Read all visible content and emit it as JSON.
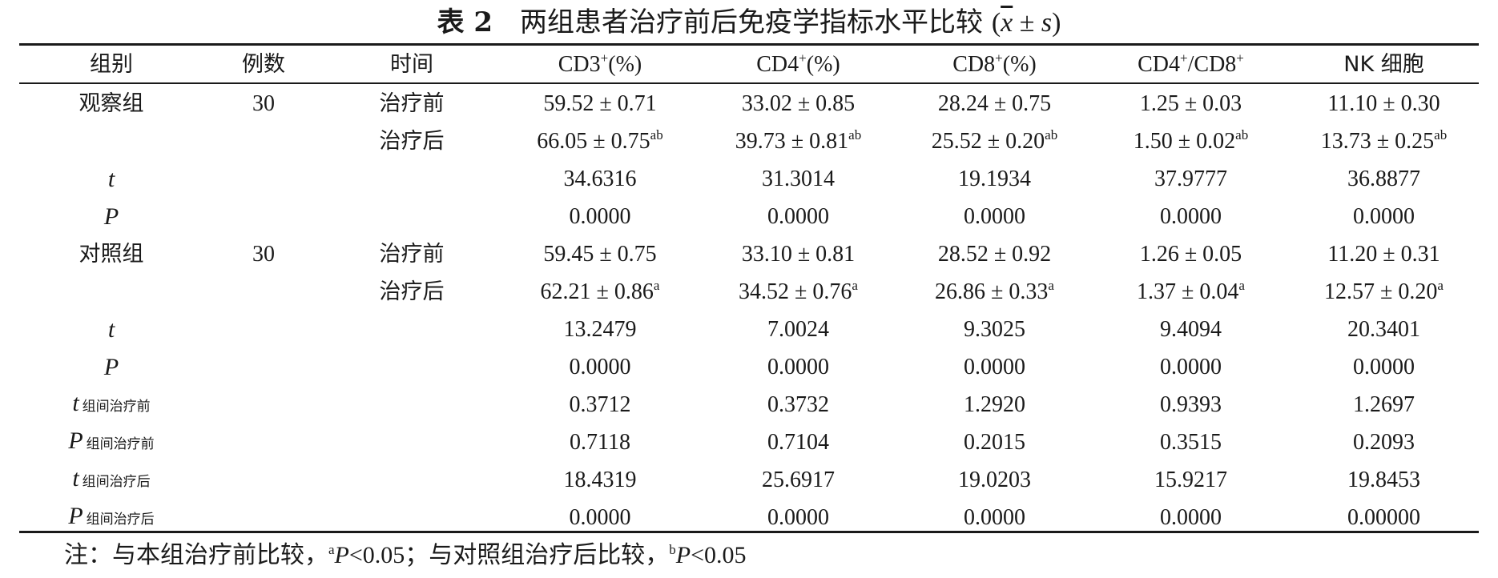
{
  "title": {
    "label": "表 2",
    "text": "两组患者治疗前后免疫学指标水平比较",
    "xbar": "x",
    "pm": "±",
    "s": "s"
  },
  "header": {
    "group": "组别",
    "count": "例数",
    "time": "时间",
    "cd3": {
      "base": "CD3",
      "sup": "+",
      "unit": "(%)"
    },
    "cd4": {
      "base": "CD4",
      "sup": "+",
      "unit": "(%)"
    },
    "cd8": {
      "base": "CD8",
      "sup": "+",
      "unit": "(%)"
    },
    "ratio": {
      "a": "CD4",
      "a_sup": "+",
      "slash": "/CD8",
      "b_sup": "+"
    },
    "nk": "NK 细胞"
  },
  "rows": [
    {
      "group": "观察组",
      "n": "30",
      "time": "治疗前",
      "v": [
        "59.52 ± 0.71",
        "33.02 ± 0.85",
        "28.24 ± 0.75",
        "1.25 ± 0.03",
        "11.10 ± 0.30"
      ],
      "sup": [
        "",
        "",
        "",
        "",
        ""
      ]
    },
    {
      "group": "",
      "n": "",
      "time": "治疗后",
      "v": [
        "66.05 ± 0.75",
        "39.73 ± 0.81",
        "25.52 ± 0.20",
        "1.50 ± 0.02",
        "13.73 ± 0.25"
      ],
      "sup": [
        "ab",
        "ab",
        "ab",
        "ab",
        "ab"
      ]
    },
    {
      "stat": "t",
      "stat_sub": "",
      "v": [
        "34.6316",
        "31.3014",
        "19.1934",
        "37.9777",
        "36.8877"
      ]
    },
    {
      "stat": "P",
      "stat_sub": "",
      "v": [
        "0.0000",
        "0.0000",
        "0.0000",
        "0.0000",
        "0.0000"
      ]
    },
    {
      "group": "对照组",
      "n": "30",
      "time": "治疗前",
      "v": [
        "59.45 ± 0.75",
        "33.10 ± 0.81",
        "28.52 ± 0.92",
        "1.26 ± 0.05",
        "11.20 ± 0.31"
      ],
      "sup": [
        "",
        "",
        "",
        "",
        ""
      ]
    },
    {
      "group": "",
      "n": "",
      "time": "治疗后",
      "v": [
        "62.21 ± 0.86",
        "34.52 ± 0.76",
        "26.86 ± 0.33",
        "1.37 ± 0.04",
        "12.57 ± 0.20"
      ],
      "sup": [
        "a",
        "a",
        "a",
        "a",
        "a"
      ]
    },
    {
      "stat": "t",
      "stat_sub": "",
      "v": [
        "13.2479",
        "7.0024",
        "9.3025",
        "9.4094",
        "20.3401"
      ]
    },
    {
      "stat": "P",
      "stat_sub": "",
      "v": [
        "0.0000",
        "0.0000",
        "0.0000",
        "0.0000",
        "0.0000"
      ]
    },
    {
      "stat": "t",
      "stat_sub": "组间治疗前",
      "v": [
        "0.3712",
        "0.3732",
        "1.2920",
        "0.9393",
        "1.2697"
      ]
    },
    {
      "stat": "P",
      "stat_sub": "组间治疗前",
      "v": [
        "0.7118",
        "0.7104",
        "0.2015",
        "0.3515",
        "0.2093"
      ]
    },
    {
      "stat": "t",
      "stat_sub": "组间治疗后",
      "v": [
        "18.4319",
        "25.6917",
        "19.0203",
        "15.9217",
        "19.8453"
      ]
    },
    {
      "stat": "P",
      "stat_sub": "组间治疗后",
      "v": [
        "0.0000",
        "0.0000",
        "0.0000",
        "0.0000",
        "0.00000"
      ]
    }
  ],
  "note": {
    "prefix": "注：与本组治疗前比较，",
    "sup_a": "a",
    "p1": "P",
    "val1": "<0.05",
    "mid": "；与对照组治疗后比较，",
    "sup_b": "b",
    "p2": "P",
    "val2": "<0.05"
  }
}
